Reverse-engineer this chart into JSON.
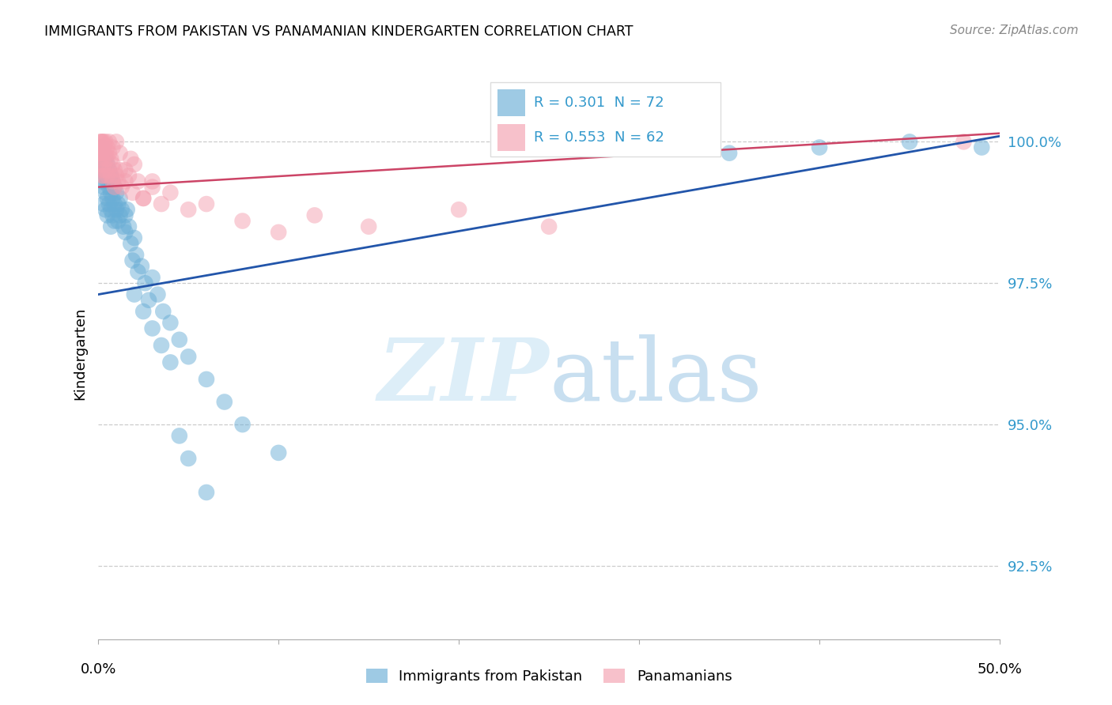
{
  "title": "IMMIGRANTS FROM PAKISTAN VS PANAMANIAN KINDERGARTEN CORRELATION CHART",
  "source": "Source: ZipAtlas.com",
  "ylabel": "Kindergarten",
  "yticks": [
    92.5,
    95.0,
    97.5,
    100.0
  ],
  "ytick_labels": [
    "92.5%",
    "95.0%",
    "97.5%",
    "100.0%"
  ],
  "xlim": [
    0.0,
    0.5
  ],
  "ylim": [
    91.2,
    101.3
  ],
  "legend_r1": "R = 0.301  N = 72",
  "legend_r2": "R = 0.553  N = 62",
  "blue_color": "#6aaed6",
  "pink_color": "#f4a0b0",
  "blue_line_color": "#2255aa",
  "pink_line_color": "#cc4466",
  "blue_scatter_x": [
    0.001,
    0.001,
    0.002,
    0.002,
    0.002,
    0.003,
    0.003,
    0.003,
    0.003,
    0.004,
    0.004,
    0.004,
    0.004,
    0.005,
    0.005,
    0.005,
    0.005,
    0.006,
    0.006,
    0.006,
    0.007,
    0.007,
    0.007,
    0.007,
    0.008,
    0.008,
    0.008,
    0.009,
    0.009,
    0.009,
    0.01,
    0.01,
    0.011,
    0.011,
    0.012,
    0.012,
    0.013,
    0.014,
    0.015,
    0.015,
    0.016,
    0.017,
    0.018,
    0.019,
    0.02,
    0.021,
    0.022,
    0.024,
    0.026,
    0.028,
    0.03,
    0.033,
    0.036,
    0.04,
    0.045,
    0.05,
    0.06,
    0.07,
    0.08,
    0.1,
    0.02,
    0.025,
    0.03,
    0.035,
    0.04,
    0.045,
    0.05,
    0.06,
    0.35,
    0.4,
    0.45,
    0.49
  ],
  "blue_scatter_y": [
    99.8,
    99.5,
    99.9,
    99.6,
    99.3,
    99.8,
    99.5,
    99.2,
    98.9,
    99.7,
    99.4,
    99.1,
    98.8,
    99.6,
    99.3,
    99.0,
    98.7,
    99.5,
    99.2,
    98.9,
    99.4,
    99.1,
    98.8,
    98.5,
    99.3,
    99.0,
    98.7,
    99.2,
    98.9,
    98.6,
    99.1,
    98.8,
    98.9,
    98.6,
    99.0,
    98.7,
    98.8,
    98.5,
    98.7,
    98.4,
    98.8,
    98.5,
    98.2,
    97.9,
    98.3,
    98.0,
    97.7,
    97.8,
    97.5,
    97.2,
    97.6,
    97.3,
    97.0,
    96.8,
    96.5,
    96.2,
    95.8,
    95.4,
    95.0,
    94.5,
    97.3,
    97.0,
    96.7,
    96.4,
    96.1,
    94.8,
    94.4,
    93.8,
    99.8,
    99.9,
    100.0,
    99.9
  ],
  "pink_scatter_x": [
    0.001,
    0.001,
    0.001,
    0.002,
    0.002,
    0.002,
    0.002,
    0.003,
    0.003,
    0.003,
    0.003,
    0.004,
    0.004,
    0.004,
    0.005,
    0.005,
    0.005,
    0.006,
    0.006,
    0.007,
    0.007,
    0.008,
    0.008,
    0.009,
    0.009,
    0.01,
    0.011,
    0.012,
    0.013,
    0.015,
    0.017,
    0.019,
    0.022,
    0.025,
    0.03,
    0.035,
    0.04,
    0.05,
    0.06,
    0.08,
    0.1,
    0.12,
    0.15,
    0.2,
    0.25,
    0.02,
    0.025,
    0.03,
    0.018,
    0.015,
    0.012,
    0.01,
    0.008,
    0.006,
    0.004,
    0.003,
    0.002,
    0.001,
    0.34,
    0.48,
    0.001,
    0.002
  ],
  "pink_scatter_y": [
    100.0,
    99.9,
    99.8,
    100.0,
    99.9,
    99.7,
    99.5,
    100.0,
    99.8,
    99.6,
    99.4,
    100.0,
    99.7,
    99.5,
    99.9,
    99.7,
    99.4,
    99.8,
    99.5,
    99.7,
    99.4,
    99.6,
    99.3,
    99.5,
    99.2,
    99.4,
    99.3,
    99.5,
    99.2,
    99.3,
    99.4,
    99.1,
    99.3,
    99.0,
    99.2,
    98.9,
    99.1,
    98.8,
    98.9,
    98.6,
    98.4,
    98.7,
    98.5,
    98.8,
    98.5,
    99.6,
    99.0,
    99.3,
    99.7,
    99.5,
    99.8,
    100.0,
    99.9,
    100.0,
    99.8,
    99.9,
    100.0,
    99.8,
    100.0,
    100.0,
    99.6,
    99.4
  ],
  "blue_trendline_x": [
    0.0,
    0.5
  ],
  "blue_trendline_y": [
    97.3,
    100.1
  ],
  "pink_trendline_x": [
    0.0,
    0.5
  ],
  "pink_trendline_y": [
    99.2,
    100.15
  ]
}
